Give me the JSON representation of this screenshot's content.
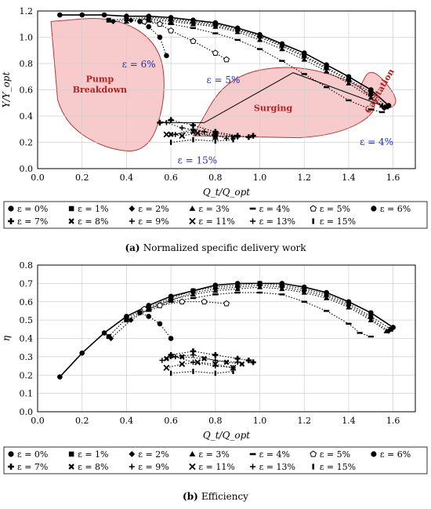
{
  "chart_data": [
    {
      "id": "a",
      "type": "line",
      "xlabel": "Q_t/Q_opt",
      "ylabel": "Y/Y_opt",
      "xlim": [
        0,
        1.7
      ],
      "ylim": [
        0,
        1.2
      ],
      "xticks": [
        "0.0",
        "0.2",
        "0.4",
        "0.6",
        "0.8",
        "1.0",
        "1.2",
        "1.4",
        "1.6"
      ],
      "yticks": [
        "0.0",
        "0.2",
        "0.4",
        "0.6",
        "0.8",
        "1.0",
        "1.2"
      ],
      "grid": true,
      "caption_label": "(a)",
      "caption_text": "Normalized specific delivery work",
      "regions": [
        {
          "label": "Pump Breakdown",
          "points": [
            [
              0.06,
              1.12
            ],
            [
              0.35,
              1.16
            ],
            [
              0.55,
              0.95
            ],
            [
              0.58,
              0.55
            ],
            [
              0.5,
              0.12
            ],
            [
              0.3,
              0.15
            ],
            [
              0.12,
              0.35
            ],
            [
              0.06,
              0.7
            ]
          ]
        },
        {
          "label": "Surging",
          "points": [
            [
              0.7,
              0.25
            ],
            [
              0.85,
              0.7
            ],
            [
              1.15,
              0.8
            ],
            [
              1.45,
              0.65
            ],
            [
              1.55,
              0.45
            ],
            [
              1.35,
              0.25
            ],
            [
              1.0,
              0.22
            ]
          ]
        },
        {
          "label": "Cavitation",
          "points": [
            [
              1.45,
              0.62
            ],
            [
              1.5,
              0.78
            ],
            [
              1.62,
              0.55
            ],
            [
              1.6,
              0.45
            ],
            [
              1.5,
              0.48
            ]
          ]
        }
      ],
      "annotations": [
        {
          "text": "ε = 6%",
          "x": 0.38,
          "y": 0.77
        },
        {
          "text": "ε = 5%",
          "x": 0.76,
          "y": 0.65
        },
        {
          "text": "ε = 4%",
          "x": 1.45,
          "y": 0.18
        },
        {
          "text": "ε = 15%",
          "x": 0.63,
          "y": 0.04
        }
      ],
      "series": [
        {
          "name": "ε = 0%",
          "marker": "circle",
          "x": [
            0.1,
            0.2,
            0.3,
            0.4,
            0.5,
            0.6,
            0.7,
            0.8,
            0.9,
            1.0,
            1.1,
            1.2,
            1.3,
            1.4,
            1.5,
            1.58
          ],
          "y": [
            1.17,
            1.17,
            1.17,
            1.16,
            1.16,
            1.15,
            1.13,
            1.11,
            1.07,
            1.02,
            0.95,
            0.88,
            0.79,
            0.7,
            0.6,
            0.48
          ]
        },
        {
          "name": "ε = 1%",
          "marker": "square",
          "x": [
            0.32,
            0.4,
            0.5,
            0.6,
            0.7,
            0.8,
            0.9,
            1.0,
            1.1,
            1.2,
            1.3,
            1.4,
            1.5,
            1.57
          ],
          "y": [
            1.13,
            1.14,
            1.15,
            1.14,
            1.12,
            1.1,
            1.06,
            1.01,
            0.94,
            0.86,
            0.77,
            0.68,
            0.58,
            0.47
          ]
        },
        {
          "name": "ε = 2%",
          "marker": "diamond",
          "x": [
            0.34,
            0.42,
            0.5,
            0.6,
            0.7,
            0.8,
            0.9,
            1.0,
            1.1,
            1.2,
            1.3,
            1.4,
            1.5,
            1.56
          ],
          "y": [
            1.12,
            1.13,
            1.14,
            1.13,
            1.11,
            1.09,
            1.05,
            1.0,
            0.93,
            0.85,
            0.76,
            0.67,
            0.56,
            0.46
          ]
        },
        {
          "name": "ε = 3%",
          "marker": "triangle",
          "x": [
            0.4,
            0.5,
            0.6,
            0.7,
            0.8,
            0.9,
            1.0,
            1.1,
            1.2,
            1.3,
            1.4,
            1.5,
            1.55
          ],
          "y": [
            1.12,
            1.13,
            1.12,
            1.1,
            1.08,
            1.04,
            0.98,
            0.91,
            0.83,
            0.74,
            0.65,
            0.54,
            0.48
          ]
        },
        {
          "name": "ε = 4%",
          "marker": "dash",
          "x": [
            0.5,
            0.6,
            0.7,
            0.8,
            0.9,
            1.0,
            1.1,
            1.2,
            1.3,
            1.4,
            1.5,
            1.55
          ],
          "y": [
            1.12,
            1.1,
            1.07,
            1.03,
            0.98,
            0.91,
            0.82,
            0.72,
            0.62,
            0.52,
            0.45,
            0.43
          ]
        },
        {
          "name": "ε = 5%",
          "marker": "pentagon",
          "x": [
            0.48,
            0.55,
            0.6,
            0.7,
            0.8,
            0.85
          ],
          "y": [
            1.12,
            1.1,
            1.05,
            0.97,
            0.88,
            0.83
          ]
        },
        {
          "name": "ε = 6%",
          "marker": "circle",
          "x": [
            0.46,
            0.5,
            0.55,
            0.58
          ],
          "y": [
            1.12,
            1.08,
            1.0,
            0.86
          ]
        },
        {
          "name": "ε = 7%",
          "marker": "plus-bold",
          "x": [
            0.55,
            0.6,
            0.7,
            0.8,
            0.9,
            0.95,
            0.97
          ],
          "y": [
            0.35,
            0.37,
            0.33,
            0.28,
            0.25,
            0.24,
            0.25
          ]
        },
        {
          "name": "ε = 8%",
          "marker": "x-bold",
          "x": [
            0.6,
            0.7,
            0.8,
            0.88
          ],
          "y": [
            0.26,
            0.28,
            0.25,
            0.24
          ]
        },
        {
          "name": "ε = 9%",
          "marker": "plus",
          "x": [
            0.62,
            0.7,
            0.8,
            0.9
          ],
          "y": [
            0.26,
            0.3,
            0.27,
            0.24
          ]
        },
        {
          "name": "ε = 11%",
          "marker": "x",
          "x": [
            0.58,
            0.65,
            0.72,
            0.8
          ],
          "y": [
            0.26,
            0.25,
            0.27,
            0.24
          ]
        },
        {
          "name": "ε = 13%",
          "marker": "plus",
          "x": [
            0.58,
            0.65,
            0.75,
            0.85
          ],
          "y": [
            0.35,
            0.31,
            0.28,
            0.23
          ]
        },
        {
          "name": "ε = 15%",
          "marker": "bar",
          "x": [
            0.6,
            0.7,
            0.8,
            0.88
          ],
          "y": [
            0.2,
            0.22,
            0.21,
            0.22
          ]
        }
      ],
      "operating_line": {
        "x": [
          0.55,
          0.75,
          1.15,
          1.55
        ],
        "y": [
          0.35,
          0.35,
          0.73,
          0.48
        ]
      }
    },
    {
      "id": "b",
      "type": "line",
      "xlabel": "Q_t/Q_opt",
      "ylabel": "η",
      "xlim": [
        0,
        1.7
      ],
      "ylim": [
        0,
        0.8
      ],
      "xticks": [
        "0.0",
        "0.2",
        "0.4",
        "0.6",
        "0.8",
        "1.0",
        "1.2",
        "1.4",
        "1.6"
      ],
      "yticks": [
        "0.0",
        "0.1",
        "0.2",
        "0.3",
        "0.4",
        "0.5",
        "0.6",
        "0.7",
        "0.8"
      ],
      "grid": true,
      "caption_label": "(b)",
      "caption_text": "Efficiency",
      "series": [
        {
          "name": "ε = 0%",
          "marker": "circle",
          "x": [
            0.1,
            0.2,
            0.3,
            0.4,
            0.5,
            0.6,
            0.7,
            0.8,
            0.9,
            1.0,
            1.1,
            1.2,
            1.3,
            1.4,
            1.5,
            1.6
          ],
          "y": [
            0.19,
            0.32,
            0.43,
            0.52,
            0.58,
            0.63,
            0.66,
            0.69,
            0.7,
            0.7,
            0.7,
            0.68,
            0.65,
            0.6,
            0.54,
            0.46
          ]
        },
        {
          "name": "ε = 1%",
          "marker": "square",
          "x": [
            0.32,
            0.4,
            0.5,
            0.6,
            0.7,
            0.8,
            0.9,
            1.0,
            1.1,
            1.2,
            1.3,
            1.4,
            1.5,
            1.59
          ],
          "y": [
            0.41,
            0.51,
            0.57,
            0.62,
            0.66,
            0.68,
            0.69,
            0.7,
            0.69,
            0.67,
            0.64,
            0.59,
            0.52,
            0.45
          ]
        },
        {
          "name": "ε = 2%",
          "marker": "diamond",
          "x": [
            0.33,
            0.42,
            0.5,
            0.6,
            0.7,
            0.8,
            0.9,
            1.0,
            1.1,
            1.2,
            1.3,
            1.4,
            1.5,
            1.58
          ],
          "y": [
            0.4,
            0.5,
            0.56,
            0.61,
            0.65,
            0.67,
            0.68,
            0.69,
            0.68,
            0.66,
            0.63,
            0.58,
            0.51,
            0.44
          ]
        },
        {
          "name": "ε = 3%",
          "marker": "triangle",
          "x": [
            0.4,
            0.5,
            0.6,
            0.7,
            0.8,
            0.9,
            1.0,
            1.1,
            1.2,
            1.3,
            1.4,
            1.5,
            1.57
          ],
          "y": [
            0.5,
            0.56,
            0.61,
            0.64,
            0.66,
            0.67,
            0.68,
            0.67,
            0.65,
            0.62,
            0.57,
            0.5,
            0.44
          ]
        },
        {
          "name": "ε = 4%",
          "marker": "dash",
          "x": [
            0.5,
            0.6,
            0.7,
            0.8,
            0.9,
            1.0,
            1.1,
            1.2,
            1.3,
            1.4,
            1.45,
            1.5
          ],
          "y": [
            0.55,
            0.6,
            0.62,
            0.64,
            0.65,
            0.65,
            0.64,
            0.6,
            0.55,
            0.48,
            0.43,
            0.41
          ]
        },
        {
          "name": "ε = 5%",
          "marker": "pentagon",
          "x": [
            0.48,
            0.55,
            0.65,
            0.75,
            0.85
          ],
          "y": [
            0.56,
            0.58,
            0.6,
            0.6,
            0.59
          ]
        },
        {
          "name": "ε = 6%",
          "marker": "circle",
          "x": [
            0.46,
            0.5,
            0.55,
            0.6
          ],
          "y": [
            0.54,
            0.52,
            0.48,
            0.4
          ]
        },
        {
          "name": "ε = 7%",
          "marker": "plus-bold",
          "x": [
            0.6,
            0.7,
            0.8,
            0.9,
            0.95,
            0.97
          ],
          "y": [
            0.31,
            0.33,
            0.31,
            0.29,
            0.28,
            0.27
          ]
        },
        {
          "name": "ε = 8%",
          "marker": "x-bold",
          "x": [
            0.58,
            0.65,
            0.75,
            0.85,
            0.92
          ],
          "y": [
            0.29,
            0.3,
            0.29,
            0.27,
            0.26
          ]
        },
        {
          "name": "ε = 9%",
          "marker": "plus",
          "x": [
            0.6,
            0.7,
            0.8,
            0.9
          ],
          "y": [
            0.3,
            0.31,
            0.28,
            0.27
          ]
        },
        {
          "name": "ε = 11%",
          "marker": "x",
          "x": [
            0.58,
            0.65,
            0.72,
            0.8,
            0.88
          ],
          "y": [
            0.24,
            0.26,
            0.27,
            0.26,
            0.24
          ]
        },
        {
          "name": "ε = 13%",
          "marker": "plus",
          "x": [
            0.56,
            0.62,
            0.7,
            0.8,
            0.88
          ],
          "y": [
            0.28,
            0.3,
            0.27,
            0.25,
            0.24
          ]
        },
        {
          "name": "ε = 15%",
          "marker": "bar",
          "x": [
            0.6,
            0.7,
            0.8,
            0.88
          ],
          "y": [
            0.21,
            0.22,
            0.21,
            0.22
          ]
        }
      ]
    }
  ],
  "legend_items": [
    {
      "label": "ε = 0%",
      "marker": "circle"
    },
    {
      "label": "ε = 1%",
      "marker": "square"
    },
    {
      "label": "ε = 2%",
      "marker": "diamond"
    },
    {
      "label": "ε = 3%",
      "marker": "triangle"
    },
    {
      "label": "ε = 4%",
      "marker": "dash"
    },
    {
      "label": "ε = 5%",
      "marker": "pentagon"
    },
    {
      "label": "ε = 6%",
      "marker": "circle"
    },
    {
      "label": "ε = 7%",
      "marker": "plus-bold"
    },
    {
      "label": "ε = 8%",
      "marker": "x-bold"
    },
    {
      "label": "ε = 9%",
      "marker": "plus"
    },
    {
      "label": "ε = 11%",
      "marker": "x"
    },
    {
      "label": "ε = 13%",
      "marker": "plus"
    },
    {
      "label": "ε = 15%",
      "marker": "bar"
    }
  ],
  "colors": {
    "region_fill": "#f7c6c7",
    "region_stroke": "#b22222",
    "region_label": "#b22222",
    "annotation": "#1f2fbf"
  }
}
